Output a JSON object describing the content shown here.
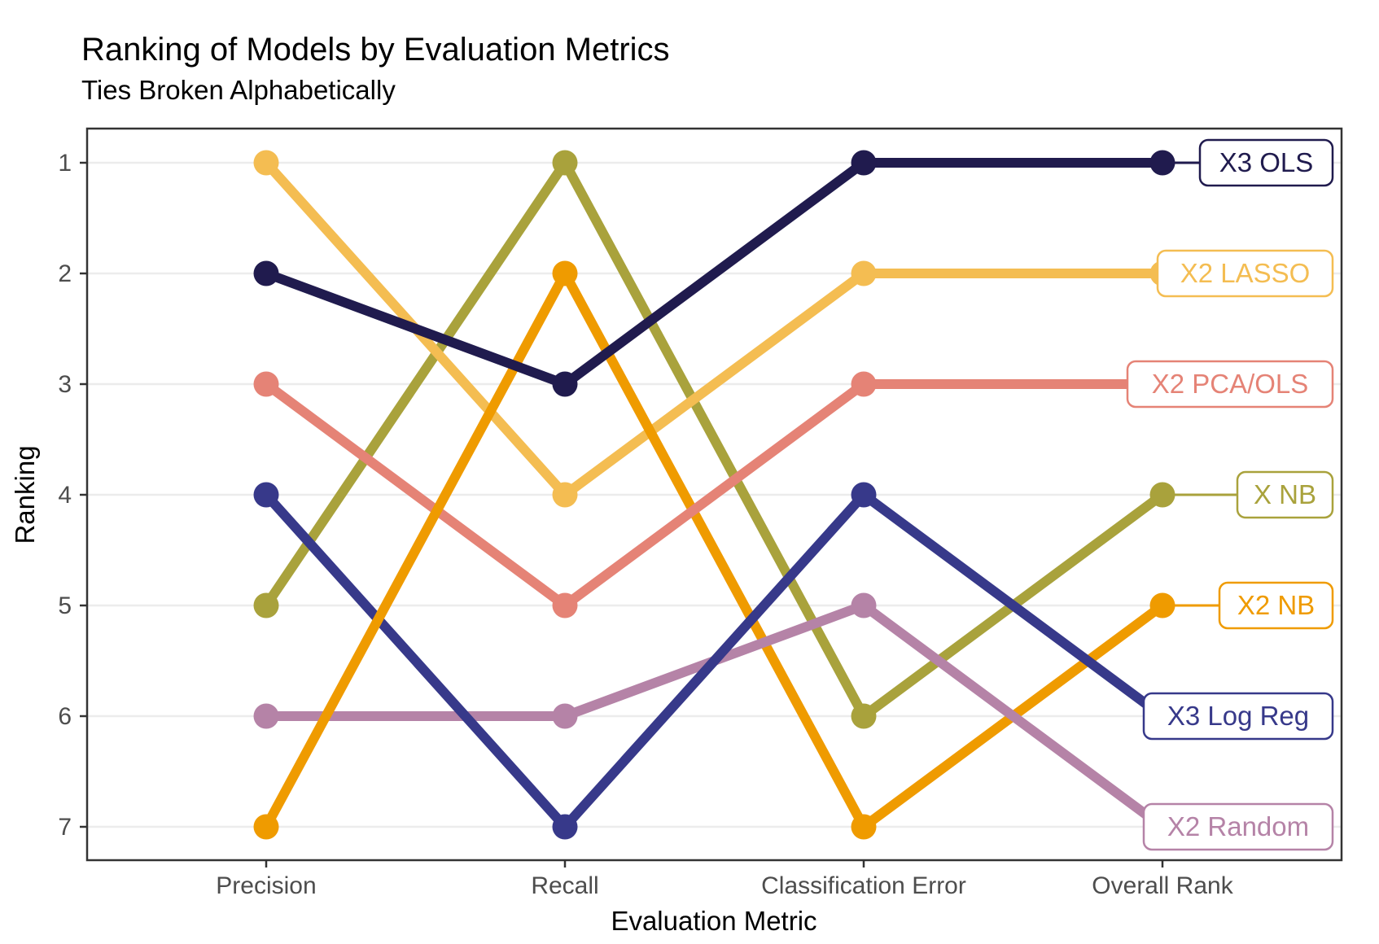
{
  "chart_data": {
    "type": "line",
    "subtype": "bump-ranking-chart",
    "title": "Ranking of Models by Evaluation Metrics",
    "subtitle": "Ties Broken Alphabetically",
    "xlabel": "Evaluation Metric",
    "ylabel": "Ranking",
    "categories": [
      "Precision",
      "Recall",
      "Classification Error",
      "Overall Rank"
    ],
    "y_ticks": [
      "1",
      "2",
      "3",
      "4",
      "5",
      "6",
      "7"
    ],
    "ylim": [
      1,
      7
    ],
    "y_axis_direction": "reversed (rank 1 at top)",
    "grid": "horizontal-only",
    "legend_position": "right-inline-label-boxes",
    "series": [
      {
        "name": "X NB",
        "color": "#a9a23c",
        "values": [
          5,
          1,
          6,
          4
        ]
      },
      {
        "name": "X2 LASSO",
        "color": "#f4bd52",
        "values": [
          1,
          4,
          2,
          2
        ]
      },
      {
        "name": "X2 NB",
        "color": "#ef9b00",
        "values": [
          7,
          2,
          7,
          5
        ]
      },
      {
        "name": "X2 PCA/OLS",
        "color": "#e58376",
        "values": [
          3,
          5,
          3,
          3
        ]
      },
      {
        "name": "X2 Random",
        "color": "#b583a7",
        "values": [
          6,
          6,
          5,
          7
        ]
      },
      {
        "name": "X3 Log Reg",
        "color": "#37398a",
        "values": [
          4,
          7,
          4,
          6
        ]
      },
      {
        "name": "X3 OLS",
        "color": "#201b4e",
        "values": [
          2,
          3,
          1,
          1
        ]
      }
    ],
    "theme": {
      "background": "#ffffff",
      "grid_color": "#ececec",
      "panel_border_color": "#333333",
      "tick_color": "#333333",
      "tick_label_color": "#4d4d4d",
      "text_color": "#000000",
      "label_box_fill": "#ffffff"
    }
  }
}
